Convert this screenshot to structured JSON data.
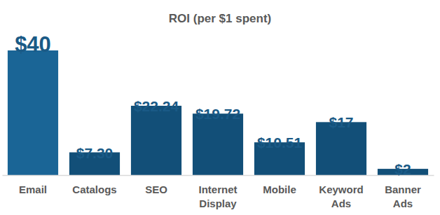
{
  "chart_data": {
    "type": "bar",
    "title": "ROI (per $1 spent)",
    "categories": [
      "Email",
      "Catalogs",
      "SEO",
      "Internet Display",
      "Mobile",
      "Keyword Ads",
      "Banner Ads"
    ],
    "values": [
      40,
      7.3,
      22.24,
      19.72,
      10.51,
      17,
      2
    ],
    "value_labels": [
      "$40",
      "$7.30",
      "$22.24",
      "$19.72",
      "$10.51",
      "$17",
      "$2"
    ],
    "colors": [
      "#1a6596",
      "#124f78",
      "#124f78",
      "#124f78",
      "#124f78",
      "#124f78",
      "#124f78"
    ],
    "ylim": [
      0,
      40
    ],
    "grid": false,
    "data_labels": true,
    "tick_labels": "x"
  }
}
